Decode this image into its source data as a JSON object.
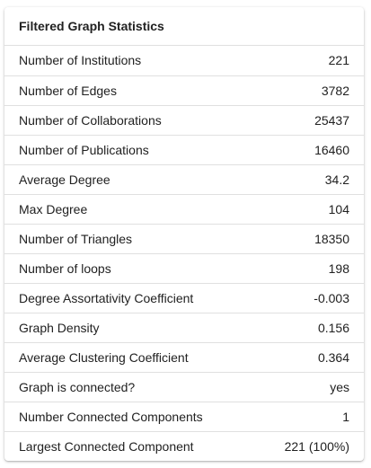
{
  "card": {
    "title": "Filtered Graph Statistics"
  },
  "rows": [
    {
      "label": "Number of Institutions",
      "value": "221"
    },
    {
      "label": "Number of Edges",
      "value": "3782"
    },
    {
      "label": "Number of Collaborations",
      "value": "25437"
    },
    {
      "label": "Number of Publications",
      "value": "16460"
    },
    {
      "label": "Average Degree",
      "value": "34.2"
    },
    {
      "label": "Max Degree",
      "value": "104"
    },
    {
      "label": "Number of Triangles",
      "value": "18350"
    },
    {
      "label": "Number of loops",
      "value": "198"
    },
    {
      "label": "Degree Assortativity Coefficient",
      "value": "-0.003"
    },
    {
      "label": "Graph Density",
      "value": "0.156"
    },
    {
      "label": "Average Clustering Coefficient",
      "value": "0.364"
    },
    {
      "label": "Graph is connected?",
      "value": "yes"
    },
    {
      "label": "Number Connected Components",
      "value": "1"
    },
    {
      "label": "Largest Connected Component",
      "value": "221 (100%)"
    }
  ]
}
